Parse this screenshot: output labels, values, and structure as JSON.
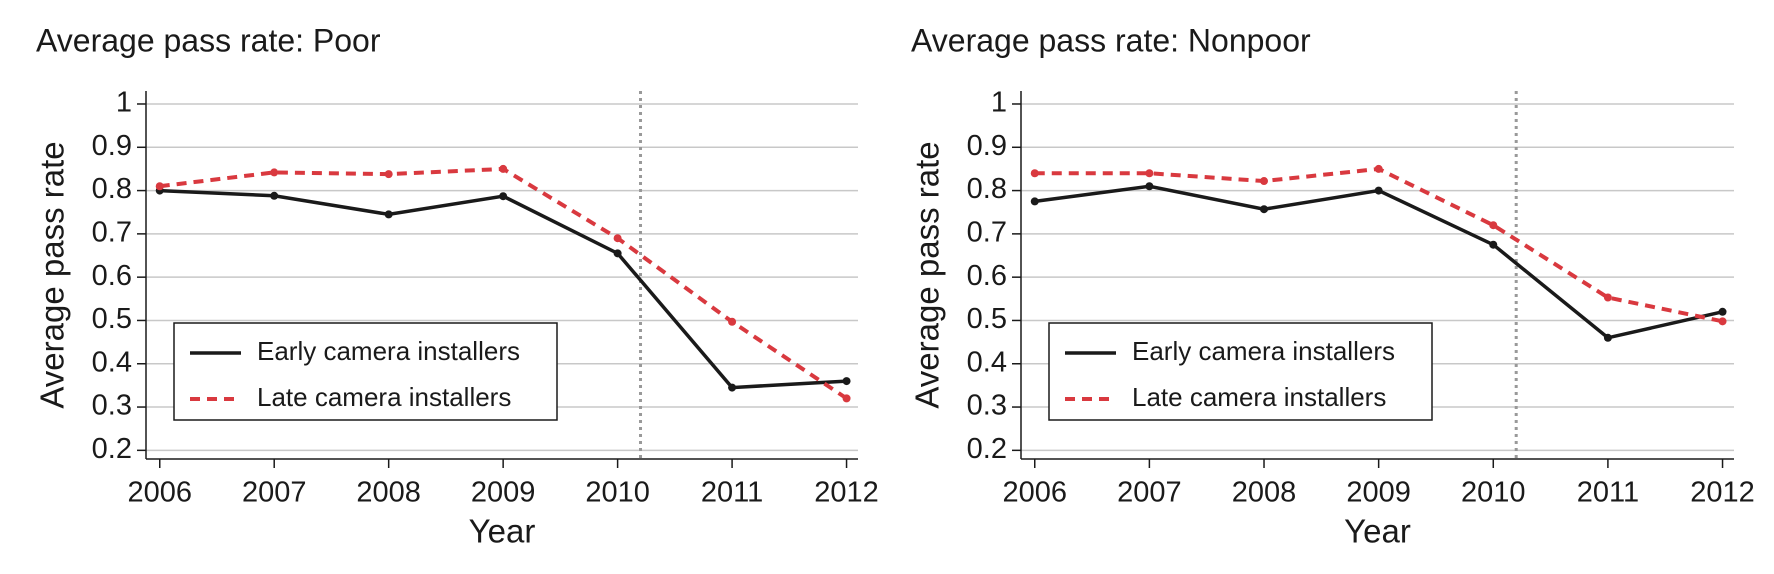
{
  "chart_data": [
    {
      "type": "line",
      "title": "Average pass rate: Poor",
      "xlabel": "Year",
      "ylabel": "Average pass rate",
      "x": [
        2006,
        2007,
        2008,
        2009,
        2010,
        2011,
        2012
      ],
      "series": [
        {
          "name": "Early camera installers",
          "color": "#1a1a1a",
          "dash": "solid",
          "values": [
            0.8,
            0.788,
            0.745,
            0.787,
            0.655,
            0.345,
            0.36
          ]
        },
        {
          "name": "Late camera installers",
          "color": "#d9393f",
          "dash": "dashed",
          "values": [
            0.81,
            0.842,
            0.838,
            0.85,
            0.69,
            0.497,
            0.32
          ]
        }
      ],
      "xlim": [
        2005.88,
        2012.1
      ],
      "xticks": [
        2006,
        2007,
        2008,
        2009,
        2010,
        2011,
        2012
      ],
      "ylim": [
        0.18,
        1.03
      ],
      "yticks": [
        0.2,
        0.3,
        0.4,
        0.5,
        0.6,
        0.7,
        0.8,
        0.9,
        1
      ],
      "grid": true,
      "vline": 2010.2,
      "legend": "lower left"
    },
    {
      "type": "line",
      "title": "Average pass rate: Nonpoor",
      "xlabel": "Year",
      "ylabel": "Average pass rate",
      "x": [
        2006,
        2007,
        2008,
        2009,
        2010,
        2011,
        2012
      ],
      "series": [
        {
          "name": "Early camera installers",
          "color": "#1a1a1a",
          "dash": "solid",
          "values": [
            0.775,
            0.81,
            0.757,
            0.8,
            0.675,
            0.46,
            0.52
          ]
        },
        {
          "name": "Late camera installers",
          "color": "#d9393f",
          "dash": "dashed",
          "values": [
            0.84,
            0.84,
            0.822,
            0.85,
            0.72,
            0.553,
            0.498
          ]
        }
      ],
      "xlim": [
        2005.88,
        2012.1
      ],
      "xticks": [
        2006,
        2007,
        2008,
        2009,
        2010,
        2011,
        2012
      ],
      "ylim": [
        0.18,
        1.03
      ],
      "yticks": [
        0.2,
        0.3,
        0.4,
        0.5,
        0.6,
        0.7,
        0.8,
        0.9,
        1
      ],
      "grid": true,
      "vline": 2010.2,
      "legend": "lower left"
    }
  ]
}
